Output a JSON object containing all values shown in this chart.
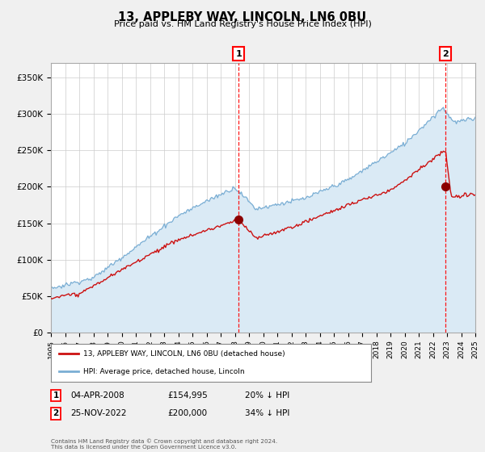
{
  "title": "13, APPLEBY WAY, LINCOLN, LN6 0BU",
  "subtitle": "Price paid vs. HM Land Registry's House Price Index (HPI)",
  "ylim": [
    0,
    370000
  ],
  "yticks": [
    0,
    50000,
    100000,
    150000,
    200000,
    250000,
    300000,
    350000
  ],
  "ytick_labels": [
    "£0",
    "£50K",
    "£100K",
    "£150K",
    "£200K",
    "£250K",
    "£300K",
    "£350K"
  ],
  "background_color": "#f0f0f0",
  "plot_bg": "#ffffff",
  "hpi_color": "#7aaed4",
  "hpi_fill": "#daeaf5",
  "price_color": "#cc1111",
  "marker1_x": 2008.27,
  "marker1_y": 154995,
  "marker2_x": 2022.9,
  "marker2_y": 200000,
  "note1": "04-APR-2008",
  "note1_price": "£154,995",
  "note1_hpi": "20% ↓ HPI",
  "note2": "25-NOV-2022",
  "note2_price": "£200,000",
  "note2_hpi": "34% ↓ HPI",
  "legend1": "13, APPLEBY WAY, LINCOLN, LN6 0BU (detached house)",
  "legend2": "HPI: Average price, detached house, Lincoln",
  "footer": "Contains HM Land Registry data © Crown copyright and database right 2024.\nThis data is licensed under the Open Government Licence v3.0.",
  "xmin": 1995,
  "xmax": 2025
}
